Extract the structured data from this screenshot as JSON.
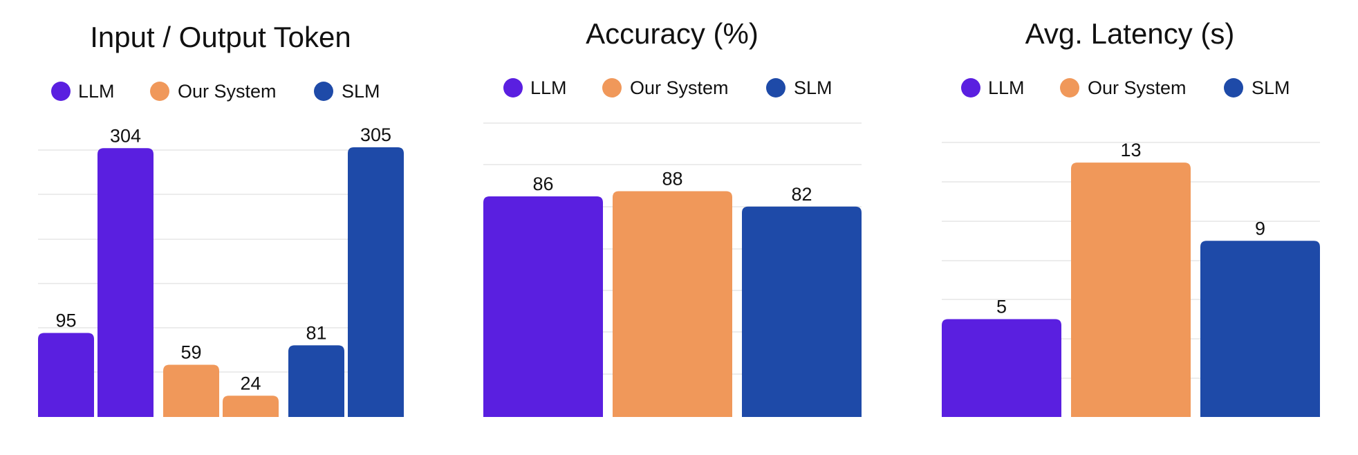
{
  "colors": {
    "LLM": "#5a1fe0",
    "Our System": "#f0985a",
    "SLM": "#1e4aa8"
  },
  "chart_data": [
    {
      "type": "bar",
      "title": "Input / Output Token",
      "legend": [
        "LLM",
        "Our System",
        "SLM"
      ],
      "legend_position": "top",
      "grid": true,
      "ylim": [
        0,
        305
      ],
      "bars": [
        {
          "series": "LLM",
          "value": 95
        },
        {
          "series": "LLM",
          "value": 304
        },
        {
          "series": "Our System",
          "value": 59
        },
        {
          "series": "Our System",
          "value": 24
        },
        {
          "series": "SLM",
          "value": 81
        },
        {
          "series": "SLM",
          "value": 305
        }
      ]
    },
    {
      "type": "bar",
      "title": "Accuracy (%)",
      "legend": [
        "LLM",
        "Our System",
        "SLM"
      ],
      "legend_position": "top",
      "grid": true,
      "ylim": [
        0,
        100
      ],
      "bars": [
        {
          "series": "LLM",
          "value": 86
        },
        {
          "series": "Our System",
          "value": 88
        },
        {
          "series": "SLM",
          "value": 82
        }
      ]
    },
    {
      "type": "bar",
      "title": "Avg. Latency (s)",
      "legend": [
        "LLM",
        "Our System",
        "SLM"
      ],
      "legend_position": "top",
      "grid": true,
      "ylim": [
        0,
        14
      ],
      "bars": [
        {
          "series": "LLM",
          "value": 5
        },
        {
          "series": "Our System",
          "value": 13
        },
        {
          "series": "SLM",
          "value": 9
        }
      ]
    }
  ]
}
